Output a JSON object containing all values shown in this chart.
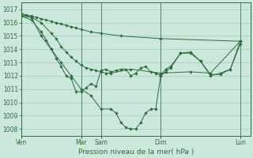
{
  "background_color": "#cce8dc",
  "grid_color": "#99ccb8",
  "line_color": "#2d6b3c",
  "marker_color": "#2d6b3c",
  "xlabel": "Pression niveau de la mer( hPa )",
  "ylim": [
    1007.5,
    1017.5
  ],
  "yticks": [
    1008,
    1009,
    1010,
    1011,
    1012,
    1013,
    1014,
    1015,
    1016,
    1017
  ],
  "day_labels": [
    "Ven",
    "Mar",
    "Sam",
    "Dim",
    "Lun"
  ],
  "day_x": [
    0,
    72,
    96,
    168,
    264
  ],
  "xlim": [
    0,
    276
  ],
  "series": [
    {
      "x": [
        0,
        6,
        12,
        18,
        24,
        30,
        36,
        42,
        48,
        54,
        60,
        66,
        72,
        84,
        96,
        120,
        168,
        264
      ],
      "y": [
        1016.5,
        1016.6,
        1016.5,
        1016.4,
        1016.3,
        1016.2,
        1016.1,
        1016.0,
        1015.9,
        1015.8,
        1015.7,
        1015.6,
        1015.5,
        1015.3,
        1015.2,
        1015.0,
        1014.8,
        1014.6
      ]
    },
    {
      "x": [
        0,
        12,
        24,
        36,
        42,
        48,
        54,
        60,
        66,
        72,
        78,
        84,
        90,
        96,
        102,
        108,
        132,
        168,
        204,
        228,
        264
      ],
      "y": [
        1016.5,
        1016.4,
        1016.0,
        1015.2,
        1014.8,
        1014.2,
        1013.8,
        1013.4,
        1013.1,
        1012.8,
        1012.6,
        1012.5,
        1012.4,
        1012.3,
        1012.2,
        1012.2,
        1012.5,
        1012.2,
        1012.3,
        1012.2,
        1014.6
      ]
    },
    {
      "x": [
        0,
        12,
        24,
        30,
        36,
        42,
        48,
        54,
        60,
        66,
        72,
        78,
        84,
        90,
        96,
        102,
        108,
        114,
        120,
        126,
        132,
        138,
        144,
        150,
        156,
        162,
        168,
        174,
        180,
        192,
        204,
        216,
        228,
        240,
        252,
        264
      ],
      "y": [
        1016.5,
        1016.2,
        1015.3,
        1014.7,
        1014.0,
        1013.3,
        1012.7,
        1012.0,
        1011.8,
        1010.8,
        1010.8,
        1011.1,
        1011.4,
        1011.2,
        1012.4,
        1012.5,
        1012.3,
        1012.4,
        1012.5,
        1012.5,
        1012.0,
        1012.2,
        1012.6,
        1012.7,
        1012.3,
        1012.2,
        1012.0,
        1012.5,
        1012.7,
        1013.7,
        1013.7,
        1013.1,
        1012.0,
        1012.2,
        1012.5,
        1014.4
      ]
    },
    {
      "x": [
        0,
        12,
        24,
        36,
        48,
        60,
        72,
        84,
        96,
        108,
        114,
        120,
        126,
        132,
        138,
        144,
        150,
        156,
        162,
        168,
        174,
        180,
        192,
        204,
        216,
        228,
        240,
        252,
        264
      ],
      "y": [
        1016.7,
        1016.4,
        1015.0,
        1014.0,
        1013.0,
        1012.0,
        1011.0,
        1010.5,
        1009.5,
        1009.5,
        1009.2,
        1008.5,
        1008.1,
        1008.0,
        1008.0,
        1008.5,
        1009.2,
        1009.5,
        1009.5,
        1012.0,
        1012.3,
        1012.6,
        1013.7,
        1013.8,
        1013.1,
        1012.1,
        1012.1,
        1012.5,
        1014.6
      ]
    }
  ],
  "vlines": [
    72,
    96,
    168,
    264
  ]
}
